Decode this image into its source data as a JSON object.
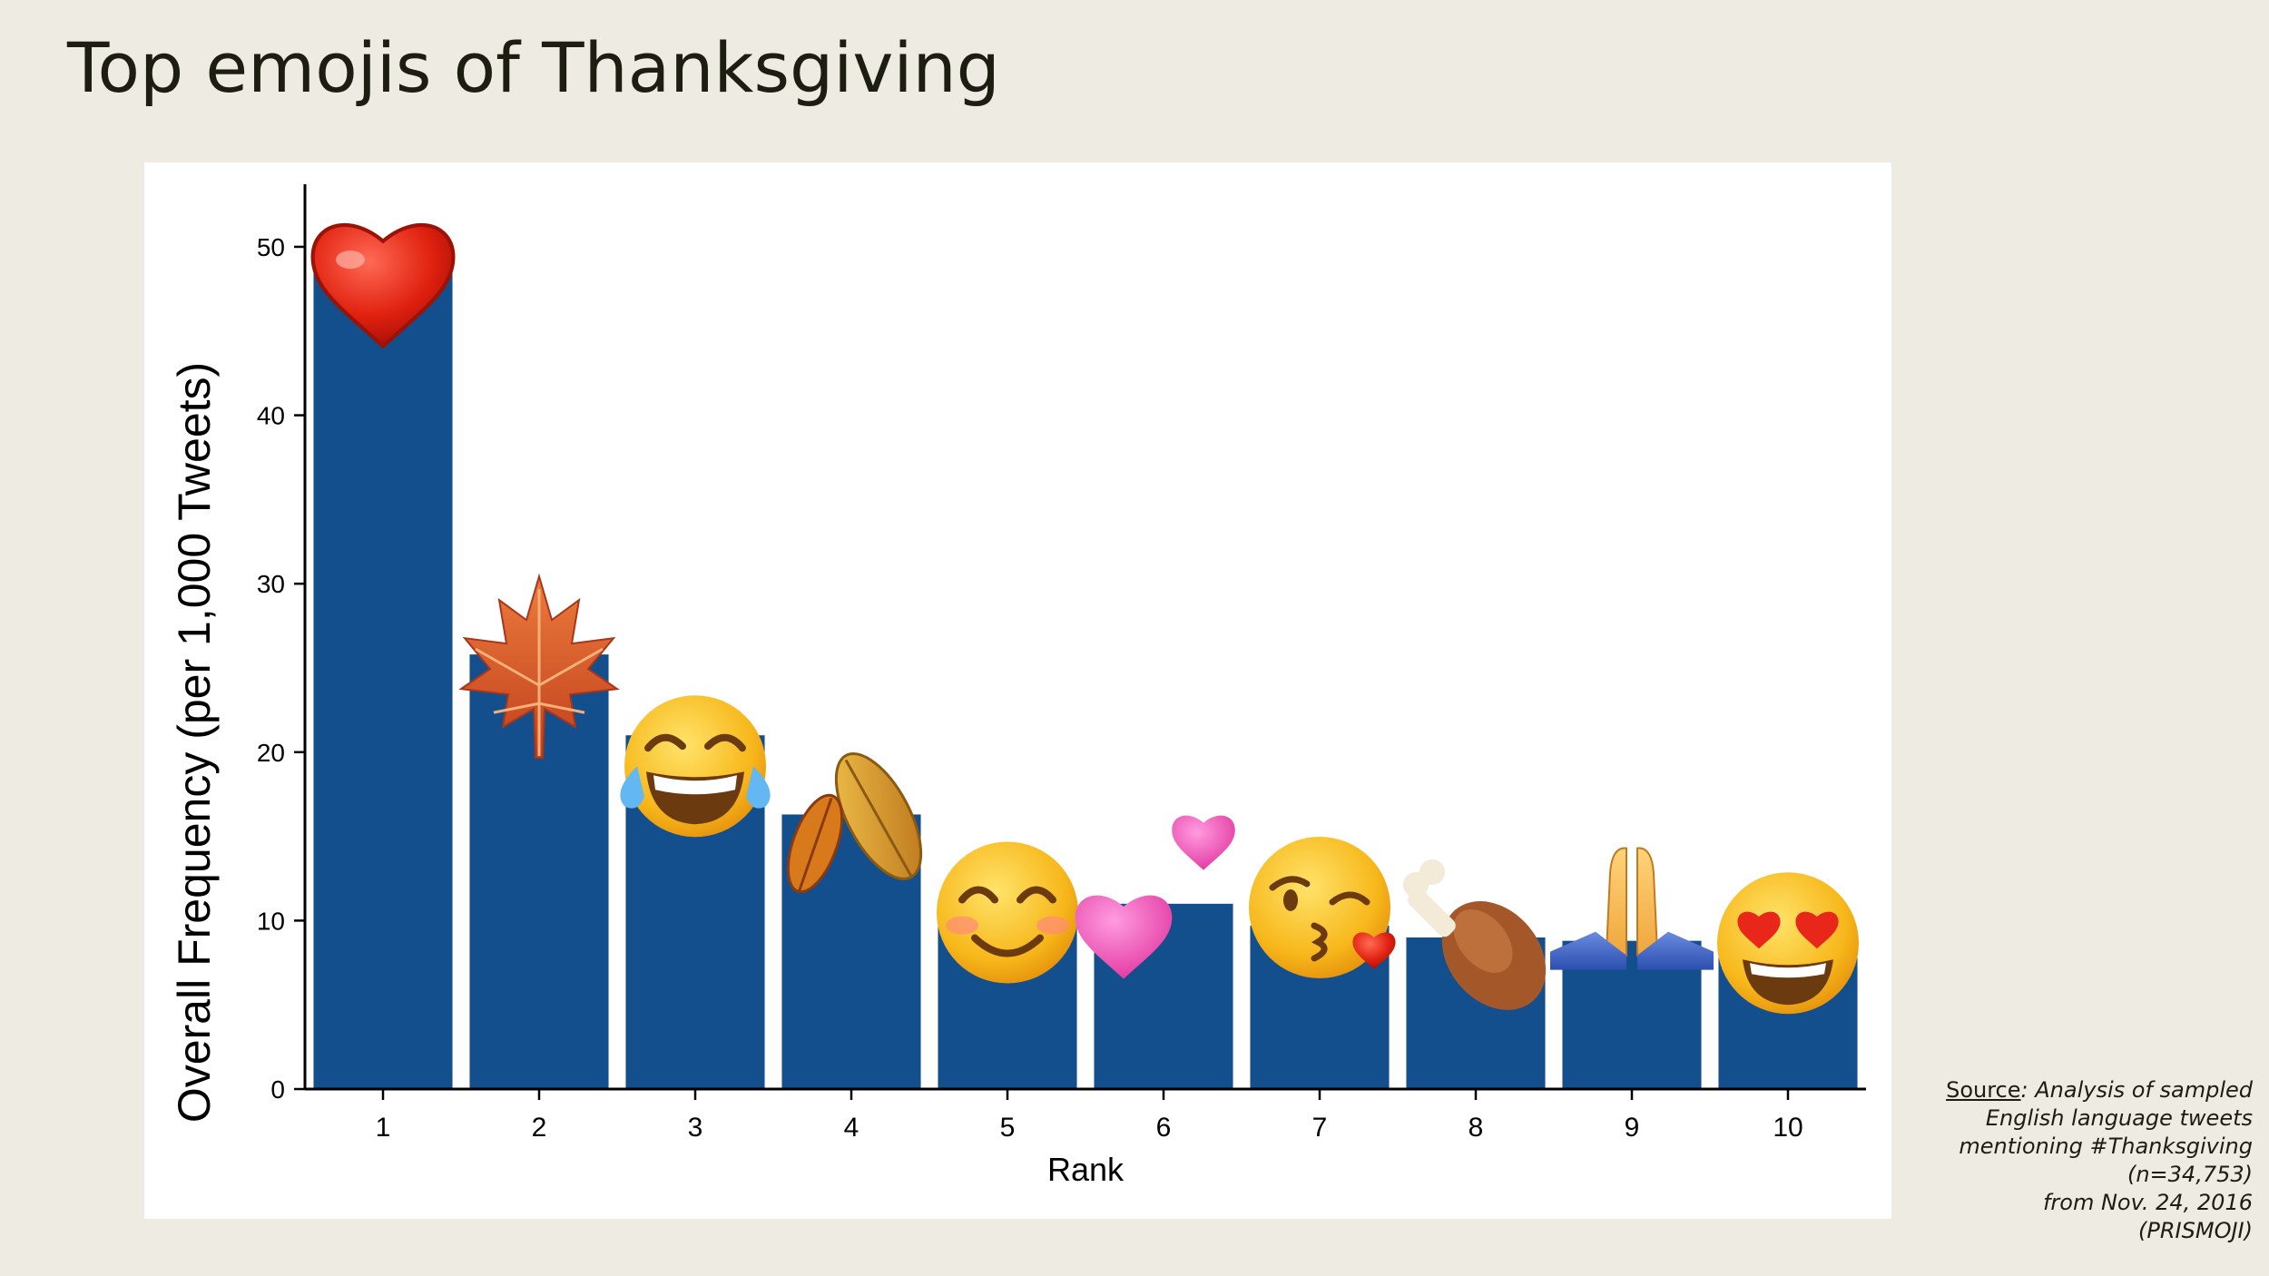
{
  "title": "Top emojis of Thanksgiving",
  "colors": {
    "background": "#eeebe2",
    "panel": "#ffffff",
    "bar": "#124f8c",
    "axis": "#000000"
  },
  "source": {
    "label": "Source",
    "lines": [
      ": Analysis of sampled",
      "English language tweets",
      "mentioning  #Thanksgiving",
      "(n=34,753)",
      "from Nov. 24, 2016",
      "(PRISMOJI)"
    ]
  },
  "chart_data": {
    "type": "bar",
    "categories": [
      "1",
      "2",
      "3",
      "4",
      "5",
      "6",
      "7",
      "8",
      "9",
      "10"
    ],
    "values": [
      48.7,
      25.8,
      21.0,
      16.3,
      10.8,
      11.0,
      9.7,
      9.0,
      8.8,
      7.8
    ],
    "emojis": [
      "red-heart",
      "maple-leaf",
      "tears-of-joy-face",
      "fallen-leaves",
      "smiling-face-with-smiling-eyes",
      "two-hearts",
      "face-blowing-a-kiss",
      "poultry-leg",
      "folded-hands",
      "heart-eyes-face"
    ],
    "xlabel": "Rank",
    "ylabel": "Overall Frequency (per 1,000 Tweets)",
    "ylim": [
      0,
      53.5
    ],
    "yticks": [
      "0",
      "10",
      "20",
      "30",
      "40",
      "50"
    ],
    "grid": false,
    "legend": "none"
  }
}
